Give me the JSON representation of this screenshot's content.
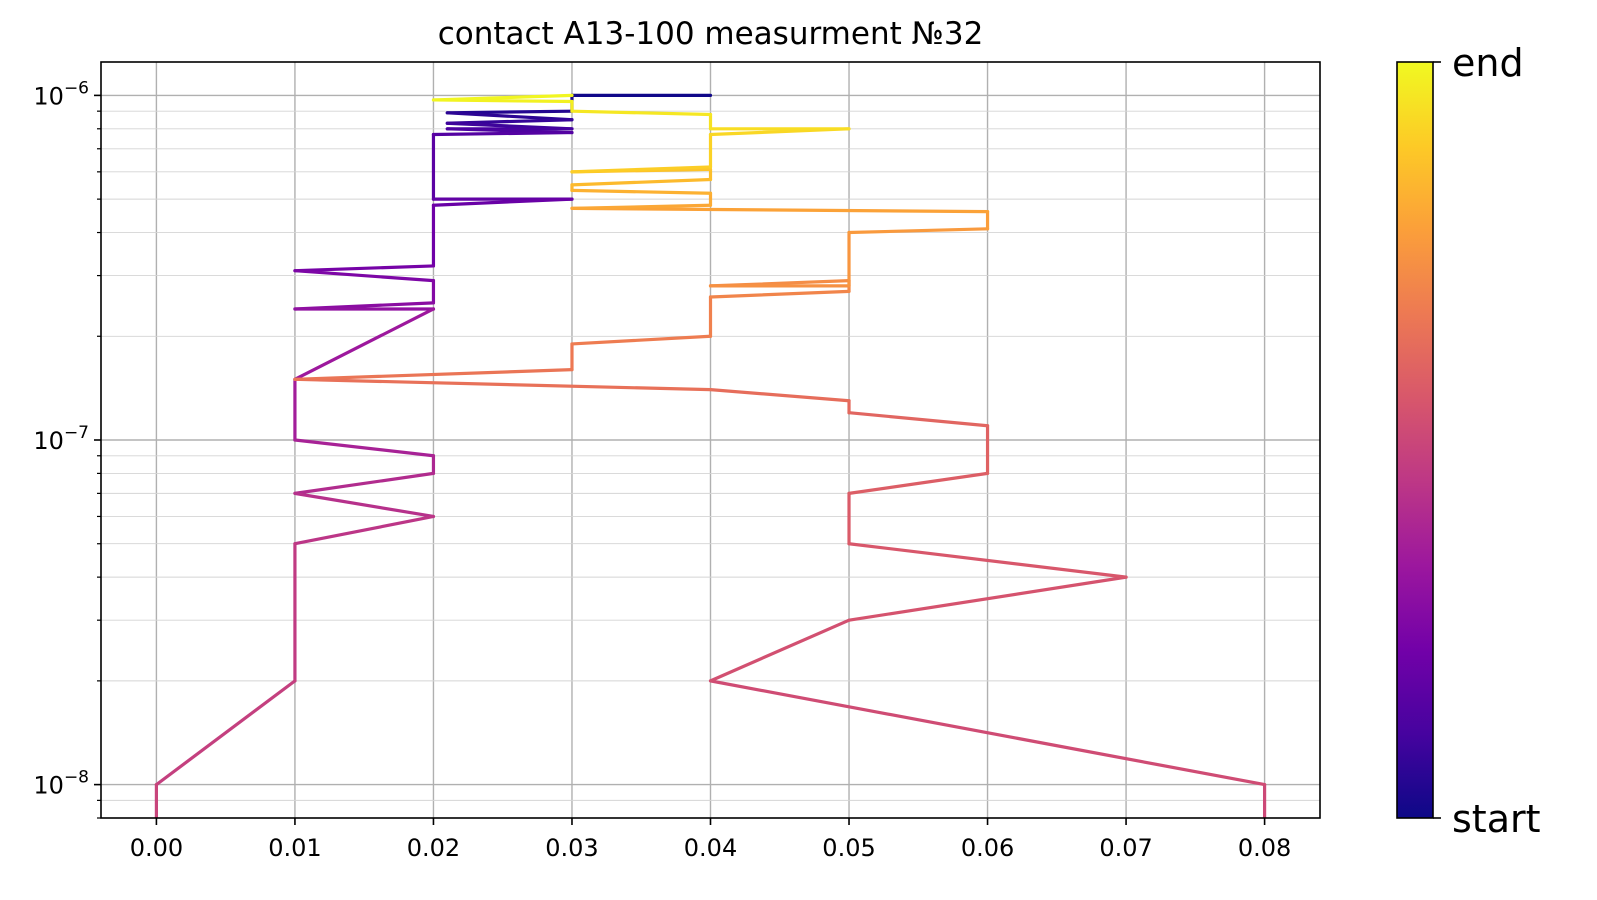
{
  "chart_data": {
    "type": "line",
    "title": "contact A13-100 measurment №32",
    "xlabel": "",
    "ylabel": "",
    "x_scale": "linear",
    "y_scale": "log",
    "xlim": [
      -0.004,
      0.084
    ],
    "ylim": [
      8e-09,
      1.25e-06
    ],
    "x_ticks": [
      0.0,
      0.01,
      0.02,
      0.03,
      0.04,
      0.05,
      0.06,
      0.07,
      0.08
    ],
    "x_tick_labels": [
      "0.00",
      "0.01",
      "0.02",
      "0.03",
      "0.04",
      "0.05",
      "0.06",
      "0.07",
      "0.08"
    ],
    "y_ticks": [
      {
        "value": 1e-08,
        "base": "10",
        "exponent": "−8"
      },
      {
        "value": 1e-07,
        "base": "10",
        "exponent": "−7"
      },
      {
        "value": 1e-06,
        "base": "10",
        "exponent": "−6"
      }
    ],
    "grid": true,
    "colormap": "plasma",
    "colormap_stops": [
      "#0d0887",
      "#46039f",
      "#7201a8",
      "#9c179e",
      "#bd3786",
      "#d8576b",
      "#ed7953",
      "#fb9f3a",
      "#fdca26",
      "#f0f921"
    ],
    "colorbar": {
      "top_label": "end",
      "bottom_label": "start"
    },
    "series": [
      {
        "start_fraction": 0.0,
        "end_fraction": 0.5,
        "x": [
          0.04,
          0.03,
          0.03,
          0.021,
          0.03,
          0.021,
          0.03,
          0.021,
          0.03,
          0.02,
          0.02,
          0.03,
          0.02,
          0.02,
          0.01,
          0.02,
          0.02,
          0.01,
          0.02,
          0.02,
          0.01,
          0.01,
          0.02,
          0.02,
          0.01,
          0.02,
          0.01,
          0.01,
          0.0,
          0.0
        ],
        "y": [
          1e-06,
          1e-06,
          9e-07,
          8.9e-07,
          8.5e-07,
          8.3e-07,
          8e-07,
          8e-07,
          7.8e-07,
          7.7e-07,
          5e-07,
          5e-07,
          4.8e-07,
          3.2e-07,
          3.1e-07,
          2.9e-07,
          2.5e-07,
          2.4e-07,
          2.4e-07,
          2.4e-07,
          1.5e-07,
          1e-07,
          9e-08,
          8e-08,
          7e-08,
          6e-08,
          5e-08,
          2e-08,
          1e-08,
          8e-09
        ]
      },
      {
        "start_fraction": 0.5,
        "end_fraction": 1.0,
        "x": [
          0.08,
          0.08,
          0.04,
          0.05,
          0.07,
          0.05,
          0.05,
          0.06,
          0.06,
          0.05,
          0.05,
          0.04,
          0.01,
          0.03,
          0.03,
          0.04,
          0.04,
          0.05,
          0.05,
          0.04,
          0.05,
          0.05,
          0.06,
          0.06,
          0.03,
          0.04,
          0.04,
          0.03,
          0.03,
          0.04,
          0.04,
          0.03,
          0.03,
          0.04,
          0.04,
          0.05,
          0.04,
          0.04,
          0.03,
          0.03,
          0.02,
          0.03
        ],
        "y": [
          8e-09,
          1e-08,
          2e-08,
          3e-08,
          4e-08,
          5e-08,
          7e-08,
          8e-08,
          1.1e-07,
          1.2e-07,
          1.3e-07,
          1.4e-07,
          1.5e-07,
          1.6e-07,
          1.9e-07,
          2e-07,
          2.6e-07,
          2.7e-07,
          2.9e-07,
          2.8e-07,
          2.8e-07,
          4e-07,
          4.1e-07,
          4.6e-07,
          4.7e-07,
          4.8e-07,
          5.2e-07,
          5.3e-07,
          5.5e-07,
          5.7e-07,
          6.1e-07,
          6e-07,
          6e-07,
          6.2e-07,
          7.7e-07,
          8e-07,
          8e-07,
          8.8e-07,
          9e-07,
          9.6e-07,
          9.7e-07,
          1e-06
        ]
      }
    ]
  }
}
